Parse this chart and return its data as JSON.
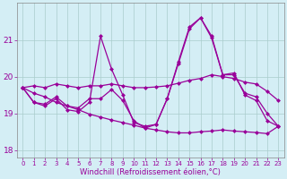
{
  "xlabel": "Windchill (Refroidissement éolien,°C)",
  "x": [
    0,
    1,
    2,
    3,
    4,
    5,
    6,
    7,
    8,
    9,
    10,
    11,
    12,
    13,
    14,
    15,
    16,
    17,
    18,
    19,
    20,
    21,
    22,
    23
  ],
  "line_color": "#990099",
  "bg_color": "#d4eef5",
  "grid_color": "#aacccc",
  "ylim": [
    17.8,
    22.0
  ],
  "yticks": [
    18,
    19,
    20,
    21
  ],
  "xlim": [
    -0.5,
    23.5
  ],
  "line1_y": [
    19.7,
    19.3,
    19.2,
    19.4,
    19.1,
    19.05,
    19.3,
    21.1,
    20.2,
    19.5,
    18.75,
    18.65,
    18.7,
    19.4,
    20.4,
    21.35,
    21.6,
    21.1,
    20.05,
    20.1,
    19.5,
    19.35,
    18.8,
    18.65
  ],
  "line2_y": [
    19.7,
    19.3,
    19.25,
    19.45,
    19.2,
    19.15,
    19.4,
    19.4,
    19.65,
    19.35,
    18.8,
    18.6,
    18.7,
    19.4,
    20.35,
    21.3,
    21.6,
    21.05,
    20.05,
    20.05,
    19.55,
    19.45,
    19.0,
    18.65
  ],
  "line3_y": [
    19.7,
    19.75,
    19.7,
    19.8,
    19.75,
    19.7,
    19.75,
    19.75,
    19.8,
    19.75,
    19.7,
    19.7,
    19.72,
    19.75,
    19.82,
    19.9,
    19.95,
    20.05,
    20.0,
    19.95,
    19.85,
    19.8,
    19.6,
    19.35
  ],
  "line4_y": [
    19.7,
    19.55,
    19.45,
    19.3,
    19.2,
    19.1,
    18.98,
    18.9,
    18.82,
    18.75,
    18.68,
    18.6,
    18.55,
    18.5,
    18.47,
    18.47,
    18.5,
    18.52,
    18.55,
    18.52,
    18.5,
    18.48,
    18.45,
    18.65
  ]
}
